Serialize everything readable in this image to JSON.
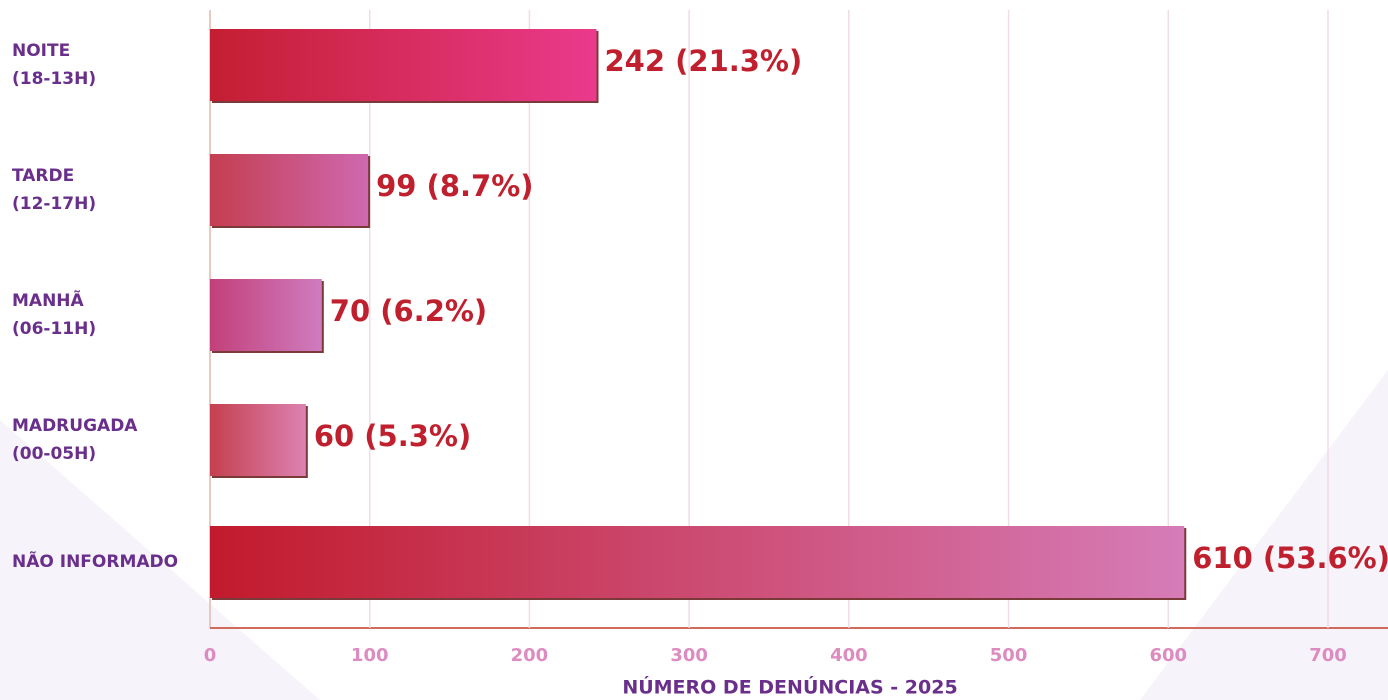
{
  "chart_data": {
    "type": "hbar",
    "xlabel": "NÚMERO DE DENÚNCIAS - 2025",
    "categories": [
      [
        "NOITE",
        "(18-13H)"
      ],
      [
        "TARDE",
        "(12-17H)"
      ],
      [
        "MANHÃ",
        "(06-11H)"
      ],
      [
        "MADRUGADA",
        "(00-05H)"
      ],
      [
        "NÃO INFORMADO"
      ]
    ],
    "values": [
      242,
      99,
      70,
      60,
      610
    ],
    "value_labels": [
      "242 (21.3%)",
      "99 (8.7%)",
      "70 (6.2%)",
      "60 (5.3%)",
      "610 (53.6%)"
    ],
    "colors": [
      [
        "#c41e32",
        "#ea3a8c"
      ],
      [
        "#c43e50",
        "#cf68b0"
      ],
      [
        "#c2407a",
        "#cf7cbf"
      ],
      [
        "#c4404e",
        "#dc82b2"
      ],
      [
        "#c21a2c",
        "#d67cb8"
      ]
    ],
    "xlim": [
      0,
      700
    ],
    "xticks": [
      0,
      100,
      200,
      300,
      400,
      500,
      600,
      700
    ],
    "grid": true
  }
}
